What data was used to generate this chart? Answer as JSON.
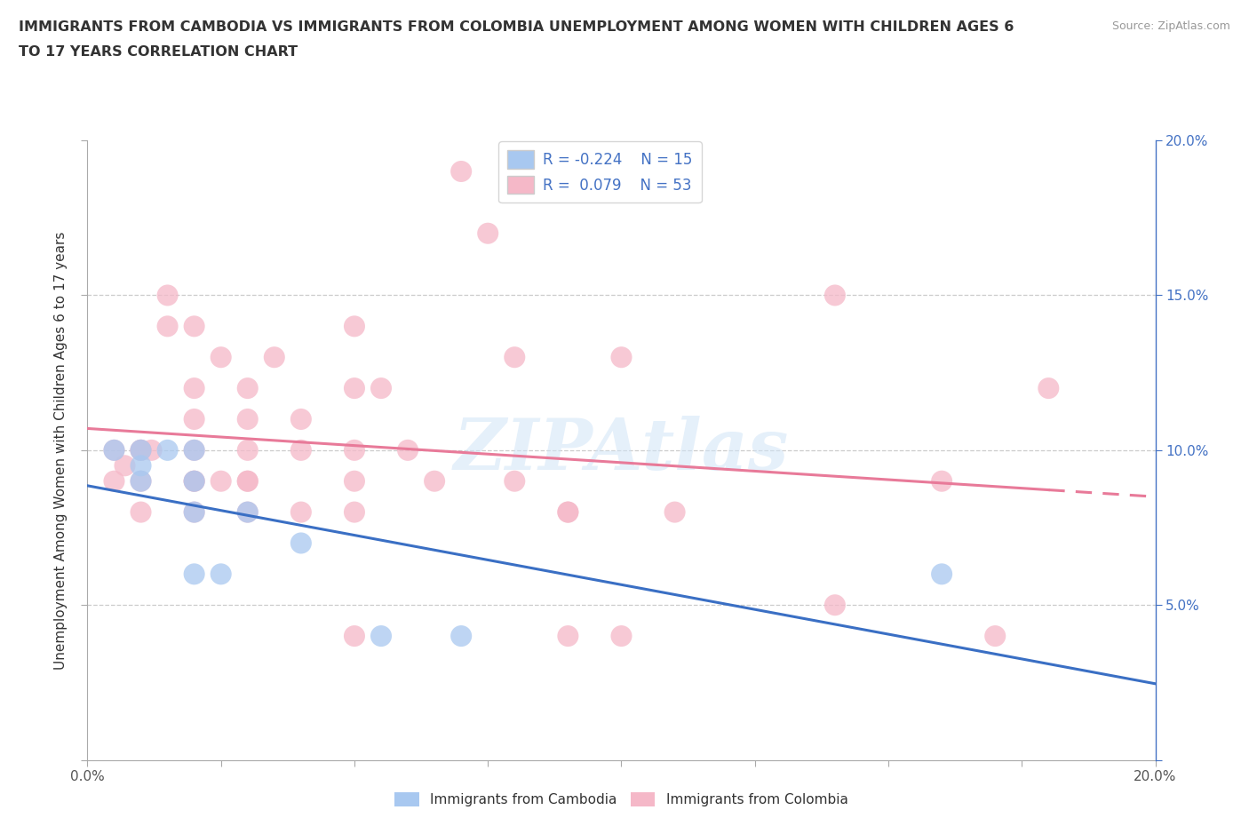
{
  "title_line1": "IMMIGRANTS FROM CAMBODIA VS IMMIGRANTS FROM COLOMBIA UNEMPLOYMENT AMONG WOMEN WITH CHILDREN AGES 6",
  "title_line2": "TO 17 YEARS CORRELATION CHART",
  "source": "Source: ZipAtlas.com",
  "ylabel": "Unemployment Among Women with Children Ages 6 to 17 years",
  "xmin": 0.0,
  "xmax": 0.2,
  "ymin": 0.0,
  "ymax": 0.2,
  "R_cambodia": -0.224,
  "N_cambodia": 15,
  "R_colombia": 0.079,
  "N_colombia": 53,
  "color_cambodia": "#a8c8f0",
  "color_colombia": "#f5b8c8",
  "line_color_cambodia": "#3a6fc4",
  "line_color_colombia": "#e87a99",
  "watermark_color": "#d0e4f7",
  "cambodia_x": [
    0.005,
    0.01,
    0.01,
    0.01,
    0.015,
    0.02,
    0.02,
    0.02,
    0.02,
    0.025,
    0.03,
    0.04,
    0.055,
    0.07,
    0.16
  ],
  "cambodia_y": [
    0.1,
    0.09,
    0.095,
    0.1,
    0.1,
    0.1,
    0.09,
    0.08,
    0.06,
    0.06,
    0.08,
    0.07,
    0.04,
    0.04,
    0.06
  ],
  "colombia_x": [
    0.005,
    0.005,
    0.007,
    0.01,
    0.01,
    0.01,
    0.01,
    0.012,
    0.015,
    0.015,
    0.02,
    0.02,
    0.02,
    0.02,
    0.02,
    0.02,
    0.02,
    0.025,
    0.025,
    0.03,
    0.03,
    0.03,
    0.03,
    0.03,
    0.03,
    0.035,
    0.04,
    0.04,
    0.04,
    0.05,
    0.05,
    0.05,
    0.05,
    0.05,
    0.05,
    0.055,
    0.06,
    0.065,
    0.07,
    0.075,
    0.08,
    0.08,
    0.09,
    0.09,
    0.09,
    0.1,
    0.1,
    0.11,
    0.14,
    0.14,
    0.16,
    0.17,
    0.18
  ],
  "colombia_y": [
    0.1,
    0.09,
    0.095,
    0.1,
    0.1,
    0.09,
    0.08,
    0.1,
    0.15,
    0.14,
    0.14,
    0.12,
    0.11,
    0.1,
    0.09,
    0.09,
    0.08,
    0.13,
    0.09,
    0.12,
    0.11,
    0.1,
    0.09,
    0.09,
    0.08,
    0.13,
    0.11,
    0.1,
    0.08,
    0.14,
    0.12,
    0.1,
    0.09,
    0.08,
    0.04,
    0.12,
    0.1,
    0.09,
    0.19,
    0.17,
    0.13,
    0.09,
    0.08,
    0.08,
    0.04,
    0.13,
    0.04,
    0.08,
    0.15,
    0.05,
    0.09,
    0.04,
    0.12
  ],
  "legend_bottom_labels": [
    "Immigrants from Cambodia",
    "Immigrants from Colombia"
  ],
  "x_tick_positions": [
    0.0,
    0.025,
    0.05,
    0.075,
    0.1,
    0.125,
    0.15,
    0.175,
    0.2
  ],
  "y_tick_positions": [
    0.0,
    0.05,
    0.1,
    0.15,
    0.2
  ]
}
